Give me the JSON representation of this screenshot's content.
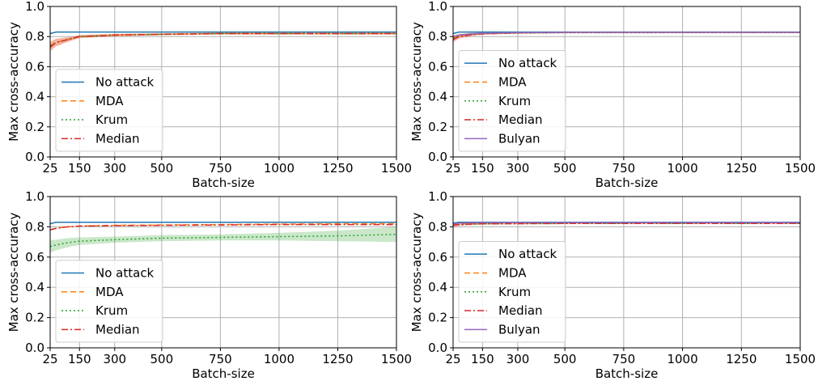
{
  "chart_data": [
    {
      "type": "line",
      "xlabel": "Batch-size",
      "ylabel": "Max cross-accuracy",
      "xlim": [
        25,
        1500
      ],
      "ylim": [
        0.0,
        1.0
      ],
      "xticks": [
        "25",
        "150",
        "300",
        "500",
        "750",
        "1000",
        "1250",
        "1500"
      ],
      "yticks": [
        "0.0",
        "0.2",
        "0.4",
        "0.6",
        "0.8",
        "1.0"
      ],
      "grid": true,
      "legend_position": "lower-left",
      "x": [
        25,
        50,
        100,
        150,
        300,
        500,
        750,
        1000,
        1250,
        1500
      ],
      "series": [
        {
          "name": "No attack",
          "style": "solid",
          "color": "#1f77b4",
          "values": [
            0.82,
            0.83,
            0.83,
            0.83,
            0.83,
            0.83,
            0.83,
            0.83,
            0.83,
            0.83
          ]
        },
        {
          "name": "MDA",
          "style": "dashed",
          "color": "#ff7f0e",
          "values": [
            0.74,
            0.76,
            0.78,
            0.8,
            0.81,
            0.815,
            0.82,
            0.82,
            0.82,
            0.82
          ],
          "band": [
            0.03,
            0.025,
            0.015,
            0.01,
            0.008,
            0.006,
            0.006,
            0.006,
            0.006,
            0.006
          ]
        },
        {
          "name": "Krum",
          "style": "dotted",
          "color": "#2ca02c",
          "values": [
            0.74,
            0.76,
            0.78,
            0.8,
            0.81,
            0.815,
            0.82,
            0.82,
            0.82,
            0.82
          ]
        },
        {
          "name": "Median",
          "style": "dashdot",
          "color": "#d62728",
          "values": [
            0.73,
            0.76,
            0.78,
            0.8,
            0.81,
            0.815,
            0.82,
            0.82,
            0.82,
            0.82
          ],
          "band": [
            0.03,
            0.025,
            0.015,
            0.01,
            0.008,
            0.006,
            0.006,
            0.006,
            0.006,
            0.006
          ]
        }
      ]
    },
    {
      "type": "line",
      "xlabel": "Batch-size",
      "ylabel": "Max cross-accuracy",
      "xlim": [
        25,
        1500
      ],
      "ylim": [
        0.0,
        1.0
      ],
      "xticks": [
        "25",
        "150",
        "300",
        "500",
        "750",
        "1000",
        "1250",
        "1500"
      ],
      "yticks": [
        "0.0",
        "0.2",
        "0.4",
        "0.6",
        "0.8",
        "1.0"
      ],
      "grid": true,
      "legend_position": "lower-left",
      "x": [
        25,
        50,
        100,
        150,
        300,
        500,
        750,
        1000,
        1250,
        1500
      ],
      "series": [
        {
          "name": "No attack",
          "style": "solid",
          "color": "#1f77b4",
          "values": [
            0.82,
            0.83,
            0.83,
            0.83,
            0.83,
            0.83,
            0.83,
            0.83,
            0.83,
            0.83
          ]
        },
        {
          "name": "MDA",
          "style": "dashed",
          "color": "#ff7f0e",
          "values": [
            0.79,
            0.805,
            0.815,
            0.82,
            0.825,
            0.828,
            0.828,
            0.828,
            0.828,
            0.828
          ],
          "band": [
            0.02,
            0.015,
            0.01,
            0.006,
            0.005,
            0.004,
            0.004,
            0.004,
            0.004,
            0.004
          ]
        },
        {
          "name": "Krum",
          "style": "dotted",
          "color": "#2ca02c",
          "values": [
            0.79,
            0.805,
            0.815,
            0.82,
            0.823,
            0.825,
            0.825,
            0.826,
            0.826,
            0.826
          ]
        },
        {
          "name": "Median",
          "style": "dashdot",
          "color": "#d62728",
          "values": [
            0.78,
            0.8,
            0.812,
            0.818,
            0.824,
            0.827,
            0.828,
            0.828,
            0.828,
            0.828
          ],
          "band": [
            0.02,
            0.015,
            0.01,
            0.006,
            0.005,
            0.004,
            0.004,
            0.004,
            0.004,
            0.004
          ]
        },
        {
          "name": "Bulyan",
          "style": "solid",
          "color": "#9467bd",
          "values": [
            0.8,
            0.81,
            0.818,
            0.822,
            0.826,
            0.828,
            0.828,
            0.828,
            0.828,
            0.828
          ]
        }
      ]
    },
    {
      "type": "line",
      "xlabel": "Batch-size",
      "ylabel": "Max cross-accuracy",
      "xlim": [
        25,
        1500
      ],
      "ylim": [
        0.0,
        1.0
      ],
      "xticks": [
        "25",
        "150",
        "300",
        "500",
        "750",
        "1000",
        "1250",
        "1500"
      ],
      "yticks": [
        "0.0",
        "0.2",
        "0.4",
        "0.6",
        "0.8",
        "1.0"
      ],
      "grid": true,
      "legend_position": "lower-left",
      "x": [
        25,
        50,
        100,
        150,
        300,
        500,
        750,
        1000,
        1250,
        1500
      ],
      "series": [
        {
          "name": "No attack",
          "style": "solid",
          "color": "#1f77b4",
          "values": [
            0.82,
            0.83,
            0.83,
            0.83,
            0.83,
            0.83,
            0.83,
            0.83,
            0.83,
            0.83
          ]
        },
        {
          "name": "MDA",
          "style": "dashed",
          "color": "#ff7f0e",
          "values": [
            0.78,
            0.79,
            0.8,
            0.805,
            0.81,
            0.812,
            0.815,
            0.818,
            0.82,
            0.82
          ]
        },
        {
          "name": "Krum",
          "style": "dotted",
          "color": "#2ca02c",
          "values": [
            0.67,
            0.68,
            0.695,
            0.705,
            0.715,
            0.725,
            0.73,
            0.735,
            0.74,
            0.75
          ],
          "band": [
            0.04,
            0.035,
            0.03,
            0.025,
            0.02,
            0.02,
            0.02,
            0.025,
            0.035,
            0.05
          ]
        },
        {
          "name": "Median",
          "style": "dashdot",
          "color": "#d62728",
          "values": [
            0.78,
            0.79,
            0.8,
            0.805,
            0.808,
            0.81,
            0.812,
            0.815,
            0.815,
            0.815
          ]
        }
      ]
    },
    {
      "type": "line",
      "xlabel": "Batch-size",
      "ylabel": "Max cross-accuracy",
      "xlim": [
        25,
        1500
      ],
      "ylim": [
        0.0,
        1.0
      ],
      "xticks": [
        "25",
        "150",
        "300",
        "500",
        "750",
        "1000",
        "1250",
        "1500"
      ],
      "yticks": [
        "0.0",
        "0.2",
        "0.4",
        "0.6",
        "0.8",
        "1.0"
      ],
      "grid": true,
      "legend_position": "lower-left",
      "x": [
        25,
        50,
        100,
        150,
        300,
        500,
        750,
        1000,
        1250,
        1500
      ],
      "series": [
        {
          "name": "No attack",
          "style": "solid",
          "color": "#1f77b4",
          "values": [
            0.825,
            0.83,
            0.83,
            0.83,
            0.83,
            0.83,
            0.83,
            0.83,
            0.83,
            0.83
          ]
        },
        {
          "name": "MDA",
          "style": "dashed",
          "color": "#ff7f0e",
          "values": [
            0.815,
            0.82,
            0.822,
            0.823,
            0.824,
            0.825,
            0.825,
            0.826,
            0.826,
            0.826
          ]
        },
        {
          "name": "Krum",
          "style": "dotted",
          "color": "#2ca02c",
          "values": [
            0.81,
            0.815,
            0.818,
            0.82,
            0.821,
            0.822,
            0.822,
            0.822,
            0.822,
            0.822
          ]
        },
        {
          "name": "Median",
          "style": "dashdot",
          "color": "#d62728",
          "values": [
            0.81,
            0.815,
            0.818,
            0.82,
            0.821,
            0.822,
            0.822,
            0.822,
            0.822,
            0.822
          ],
          "band": [
            0.015,
            0.01,
            0.008,
            0.006,
            0.005,
            0.004,
            0.004,
            0.004,
            0.004,
            0.004
          ]
        },
        {
          "name": "Bulyan",
          "style": "solid",
          "color": "#9467bd",
          "values": [
            0.82,
            0.825,
            0.827,
            0.828,
            0.828,
            0.828,
            0.828,
            0.828,
            0.828,
            0.828
          ]
        }
      ]
    }
  ]
}
